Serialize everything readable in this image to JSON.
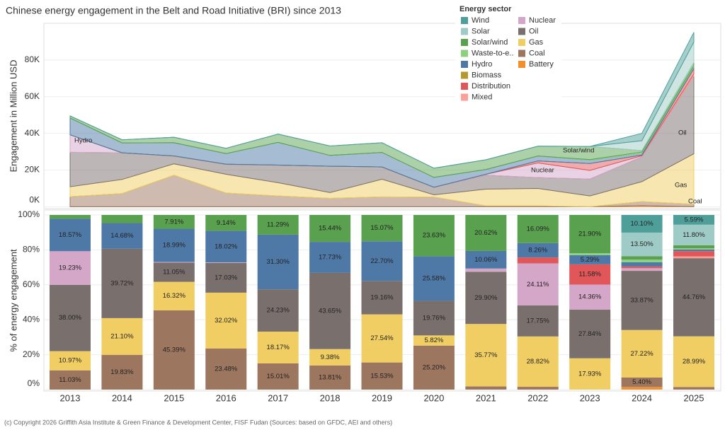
{
  "chart_data": [
    {
      "type": "area",
      "title": "Chinese energy engagement in the Belt and Road Initiative (BRI) since 2013",
      "y_label": "Engagement in Million USD",
      "legend_title": "Energy sector",
      "ylim": [
        -1000,
        100000
      ],
      "yticks": [
        {
          "value": 0,
          "label": "0K"
        },
        {
          "value": 20000,
          "label": "20K"
        },
        {
          "value": 40000,
          "label": "40K"
        },
        {
          "value": 60000,
          "label": "60K"
        },
        {
          "value": 80000,
          "label": "80K"
        }
      ],
      "grid": true,
      "annotations": [
        "Hydro",
        "Solar/wind",
        "Nuclear",
        "Oil",
        "Gas",
        "Coal"
      ],
      "series": [
        {
          "name": "Wind",
          "color": "#4e9f9a",
          "values": [
            0,
            0,
            0,
            0,
            0,
            0,
            0,
            0,
            0,
            0,
            0,
            4000,
            5300
          ]
        },
        {
          "name": "Solar",
          "color": "#9fcbc6",
          "values": [
            0,
            0,
            0,
            0,
            0,
            0,
            0,
            0,
            0,
            0,
            0,
            5400,
            11200
          ]
        },
        {
          "name": "Solar/wind",
          "color": "#59a14f",
          "values": [
            1100,
            1700,
            3000,
            2900,
            4500,
            5100,
            5300,
            5000,
            5300,
            5300,
            7200,
            800,
            1600
          ]
        },
        {
          "name": "Waste-to-e..",
          "color": "#8cd17d",
          "values": [
            0,
            0,
            0,
            0,
            0,
            0,
            0,
            0,
            0,
            0,
            400,
            600,
            700
          ]
        },
        {
          "name": "Hydro",
          "color": "#4e79a7",
          "values": [
            9200,
            5400,
            7200,
            5800,
            12400,
            5900,
            7900,
            5400,
            2600,
            2700,
            1700,
            1000,
            1000
          ]
        },
        {
          "name": "Biomass",
          "color": "#b6992d",
          "values": [
            0,
            0,
            0,
            0,
            0,
            0,
            0,
            0,
            0,
            0,
            0,
            0,
            0
          ]
        },
        {
          "name": "Distribution",
          "color": "#e15759",
          "values": [
            0,
            0,
            0,
            0,
            0,
            0,
            0,
            0,
            0,
            1100,
            3800,
            400,
            2900
          ]
        },
        {
          "name": "Mixed",
          "color": "#ff9d9a",
          "values": [
            0,
            0,
            0,
            0,
            0,
            0,
            0,
            0,
            0,
            0,
            0,
            0,
            1000
          ]
        },
        {
          "name": "Nuclear",
          "color": "#d4a6c8",
          "values": [
            9500,
            0,
            100,
            100,
            0,
            0,
            0,
            0,
            500,
            8000,
            4700,
            600,
            0
          ]
        },
        {
          "name": "Oil",
          "color": "#79706e",
          "values": [
            18800,
            14500,
            4200,
            5400,
            9600,
            14400,
            6700,
            4100,
            7600,
            5900,
            9200,
            13500,
            42500
          ]
        },
        {
          "name": "Gas",
          "color": "#f1ce63",
          "values": [
            5400,
            7700,
            6200,
            10200,
            7200,
            3100,
            9600,
            1200,
            9100,
            9500,
            5900,
            10900,
            27500
          ]
        },
        {
          "name": "Coal",
          "color": "#9d7660",
          "values": [
            5500,
            7200,
            17200,
            7500,
            5900,
            4600,
            5400,
            5300,
            500,
            500,
            0,
            2200,
            1400
          ]
        },
        {
          "name": "Battery",
          "color": "#f28e2b",
          "values": [
            0,
            0,
            0,
            0,
            0,
            0,
            0,
            0,
            0,
            0,
            0,
            600,
            0
          ]
        }
      ]
    },
    {
      "type": "bar",
      "y_label": "% of energy engagement",
      "categories": [
        "2013",
        "2014",
        "2015",
        "2016",
        "2017",
        "2018",
        "2019",
        "2020",
        "2021",
        "2022",
        "2023",
        "2024",
        "2025"
      ],
      "ylim": [
        0,
        100
      ],
      "yticks": [
        {
          "value": 0,
          "label": "0%"
        },
        {
          "value": 20,
          "label": "20%"
        },
        {
          "value": 40,
          "label": "40%"
        },
        {
          "value": 60,
          "label": "60%"
        },
        {
          "value": 80,
          "label": "80%"
        },
        {
          "value": 100,
          "label": "100%"
        }
      ],
      "grid": true,
      "series": [
        {
          "values": [
            0,
            0,
            0,
            0,
            0,
            0,
            0,
            0,
            0,
            0,
            0,
            10.1,
            5.59
          ],
          "value_labels": [
            null,
            null,
            null,
            null,
            null,
            null,
            null,
            null,
            null,
            null,
            null,
            "10.10%",
            "5.59%"
          ]
        },
        {
          "values": [
            0,
            0,
            0,
            0,
            0,
            0,
            0,
            0,
            0,
            0,
            0,
            13.5,
            11.8
          ],
          "value_labels": [
            null,
            null,
            null,
            null,
            null,
            null,
            null,
            null,
            null,
            null,
            null,
            "13.50%",
            "11.80%"
          ]
        },
        {
          "values": [
            2.2,
            4.67,
            7.91,
            9.14,
            11.29,
            15.44,
            15.07,
            23.63,
            20.62,
            16.09,
            21.9,
            2.0,
            1.66
          ],
          "value_labels": [
            null,
            null,
            "7.91%",
            "9.14%",
            "11.29%",
            "15.44%",
            "15.07%",
            "23.63%",
            "20.62%",
            "16.09%",
            "21.90%",
            null,
            null
          ]
        },
        {
          "values": [
            0,
            0,
            0,
            0,
            0,
            0,
            0,
            0,
            0,
            0,
            1.1,
            1.5,
            0.7
          ],
          "value_labels": [
            null,
            null,
            null,
            null,
            null,
            null,
            null,
            null,
            null,
            null,
            null,
            null,
            null
          ]
        },
        {
          "values": [
            18.57,
            14.68,
            18.99,
            18.02,
            31.3,
            17.73,
            22.7,
            25.58,
            10.06,
            8.26,
            5.29,
            2.41,
            1.0
          ],
          "value_labels": [
            "18.57%",
            "14.68%",
            "18.99%",
            "18.02%",
            "31.30%",
            "17.73%",
            "22.70%",
            "25.58%",
            "10.06%",
            "8.26%",
            "5.29%",
            null,
            null
          ]
        },
        {
          "values": [
            0,
            0,
            0,
            0,
            0,
            0,
            0,
            0,
            0,
            0,
            0,
            0,
            0
          ],
          "value_labels": [
            null,
            null,
            null,
            null,
            null,
            null,
            null,
            null,
            null,
            null,
            null,
            null,
            null
          ]
        },
        {
          "values": [
            0,
            0,
            0,
            0,
            0,
            0,
            0,
            0,
            0,
            3.37,
            11.58,
            1.0,
            3.0
          ],
          "value_labels": [
            null,
            null,
            null,
            null,
            null,
            null,
            null,
            null,
            null,
            null,
            "11.58%",
            null,
            null
          ]
        },
        {
          "values": [
            0,
            0,
            0,
            0,
            0,
            0,
            0,
            0,
            0,
            0,
            0,
            0,
            1.0
          ],
          "value_labels": [
            null,
            null,
            null,
            null,
            null,
            null,
            null,
            null,
            null,
            null,
            null,
            null,
            null
          ]
        },
        {
          "values": [
            19.23,
            0,
            0.34,
            0.31,
            0,
            0,
            0,
            0,
            1.85,
            24.11,
            14.36,
            1.5,
            0
          ],
          "value_labels": [
            "19.23%",
            null,
            null,
            null,
            null,
            null,
            null,
            null,
            null,
            "24.11%",
            "14.36%",
            null,
            null
          ]
        },
        {
          "values": [
            38.0,
            39.72,
            11.05,
            17.03,
            24.23,
            43.65,
            19.16,
            19.76,
            29.9,
            17.75,
            27.84,
            33.87,
            44.76
          ],
          "value_labels": [
            "38.00%",
            "39.72%",
            "11.05%",
            "17.03%",
            "24.23%",
            "43.65%",
            "19.16%",
            "19.76%",
            "29.90%",
            "17.75%",
            "27.84%",
            "33.87%",
            "44.76%"
          ]
        },
        {
          "values": [
            10.97,
            21.1,
            16.32,
            32.02,
            18.17,
            9.38,
            27.54,
            5.82,
            35.77,
            28.82,
            17.93,
            27.22,
            28.99
          ],
          "value_labels": [
            "10.97%",
            "21.10%",
            "16.32%",
            "32.02%",
            "18.17%",
            "9.38%",
            "27.54%",
            "5.82%",
            "35.77%",
            "28.82%",
            "17.93%",
            "27.22%",
            "28.99%"
          ]
        },
        {
          "values": [
            11.03,
            19.83,
            45.39,
            23.48,
            15.01,
            13.81,
            15.53,
            25.2,
            1.8,
            1.6,
            0,
            5.4,
            1.5
          ],
          "value_labels": [
            "11.03%",
            "19.83%",
            "45.39%",
            "23.48%",
            "15.01%",
            "13.81%",
            "15.53%",
            "25.20%",
            null,
            null,
            null,
            "5.40%",
            null
          ]
        },
        {
          "values": [
            0,
            0,
            0,
            0,
            0,
            0,
            0,
            0,
            0,
            0,
            0,
            1.5,
            0
          ],
          "value_labels": [
            null,
            null,
            null,
            null,
            null,
            null,
            null,
            null,
            null,
            null,
            null,
            null,
            null
          ]
        }
      ]
    }
  ],
  "footer": "(c) Copyright 2026 Griffith Asia Institute & Green Finance & Development Center, FISF Fudan (Sources: based on GFDC, AEI and others)"
}
